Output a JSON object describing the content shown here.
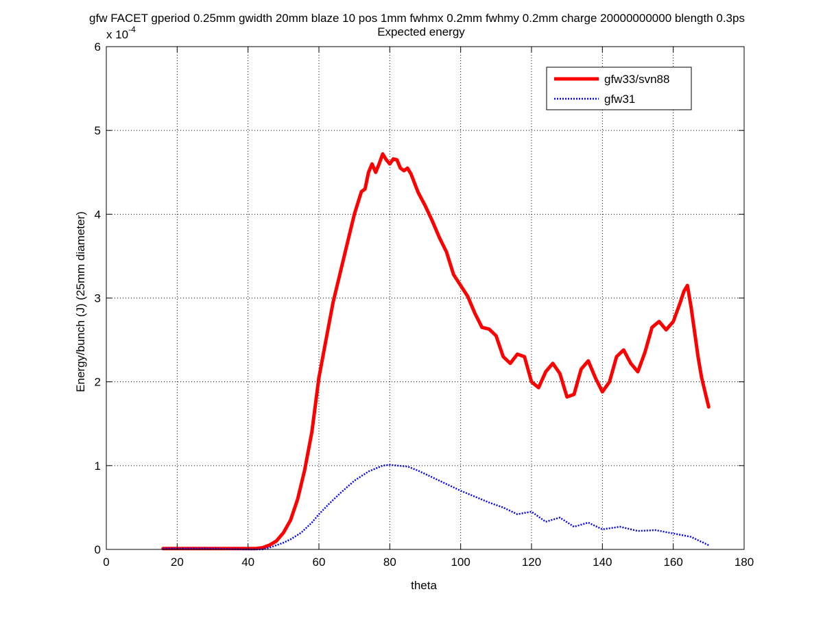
{
  "chart_data": {
    "type": "line",
    "title": "gfw FACET gperiod 0.25mm gwidth 20mm blaze 10 pos 1mm fwhmx 0.2mm fwhmy 0.2mm charge 20000000000 blength 0.3ps",
    "subtitle": "Expected energy",
    "xlabel": "theta",
    "ylabel": "Energy/bunch (J) (25mm diameter)",
    "y_multiplier_label": "x 10",
    "y_multiplier_exponent": "-4",
    "xlim": [
      0,
      180
    ],
    "ylim": [
      0,
      6
    ],
    "x_ticks": [
      0,
      20,
      40,
      60,
      80,
      100,
      120,
      140,
      160,
      180
    ],
    "x_tick_labels": [
      "0",
      "20",
      "40",
      "60",
      "80",
      "100",
      "120",
      "140",
      "160",
      "180"
    ],
    "y_ticks": [
      0,
      1,
      2,
      3,
      4,
      5,
      6
    ],
    "y_tick_labels": [
      "0",
      "1",
      "2",
      "3",
      "4",
      "5",
      "6"
    ],
    "grid": true,
    "legend_position": "top-right",
    "series": [
      {
        "name": "gfw33/svn88",
        "color": "#ff0000",
        "style": "solid",
        "x": [
          16,
          20,
          25,
          30,
          35,
          40,
          42,
          44,
          46,
          48,
          50,
          52,
          54,
          56,
          58,
          60,
          62,
          64,
          66,
          68,
          70,
          72,
          73,
          74,
          75,
          76,
          77,
          78,
          79,
          80,
          81,
          82,
          83,
          84,
          85,
          86,
          88,
          90,
          92,
          94,
          96,
          98,
          100,
          102,
          104,
          106,
          108,
          110,
          112,
          114,
          116,
          118,
          120,
          122,
          124,
          126,
          128,
          130,
          132,
          134,
          136,
          138,
          140,
          142,
          144,
          146,
          148,
          150,
          152,
          154,
          156,
          158,
          160,
          162,
          163,
          164,
          165,
          166,
          167,
          168,
          170
        ],
        "y": [
          0.01,
          0.01,
          0.01,
          0.01,
          0.01,
          0.01,
          0.01,
          0.02,
          0.05,
          0.1,
          0.2,
          0.35,
          0.6,
          0.95,
          1.4,
          2.05,
          2.5,
          2.95,
          3.3,
          3.65,
          4.0,
          4.27,
          4.3,
          4.5,
          4.6,
          4.5,
          4.6,
          4.72,
          4.65,
          4.6,
          4.66,
          4.65,
          4.55,
          4.52,
          4.55,
          4.48,
          4.26,
          4.1,
          3.92,
          3.72,
          3.55,
          3.28,
          3.15,
          3.02,
          2.82,
          2.65,
          2.63,
          2.55,
          2.3,
          2.22,
          2.33,
          2.3,
          2.0,
          1.93,
          2.12,
          2.22,
          2.1,
          1.82,
          1.85,
          2.15,
          2.25,
          2.05,
          1.88,
          2.0,
          2.3,
          2.38,
          2.22,
          2.12,
          2.35,
          2.65,
          2.72,
          2.62,
          2.72,
          2.95,
          3.08,
          3.15,
          2.9,
          2.6,
          2.3,
          2.05,
          1.7
        ]
      },
      {
        "name": "gfw31",
        "color": "#0000ff",
        "style": "dotted",
        "x": [
          16,
          20,
          30,
          40,
          44,
          46,
          48,
          50,
          52,
          55,
          58,
          60,
          63,
          66,
          70,
          74,
          78,
          80,
          82,
          85,
          88,
          92,
          96,
          100,
          104,
          108,
          112,
          116,
          120,
          124,
          128,
          132,
          136,
          140,
          145,
          150,
          155,
          160,
          165,
          170
        ],
        "y": [
          0.01,
          0.01,
          0.01,
          0.0,
          0.0,
          0.02,
          0.05,
          0.08,
          0.12,
          0.2,
          0.32,
          0.42,
          0.55,
          0.67,
          0.82,
          0.93,
          1.0,
          1.01,
          1.0,
          0.99,
          0.94,
          0.86,
          0.78,
          0.7,
          0.63,
          0.56,
          0.5,
          0.42,
          0.45,
          0.33,
          0.38,
          0.27,
          0.32,
          0.24,
          0.27,
          0.22,
          0.23,
          0.19,
          0.15,
          0.05
        ]
      }
    ]
  }
}
